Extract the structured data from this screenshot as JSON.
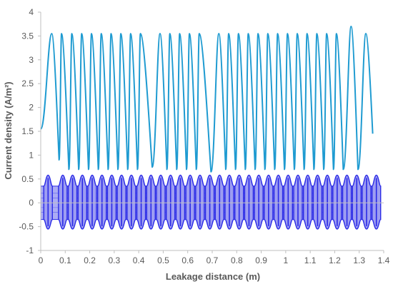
{
  "chart_data": {
    "type": "line",
    "title": "",
    "xlabel": "Leakage distance (m)",
    "ylabel": "Current density (A/m²)",
    "xlim": [
      0,
      1.4
    ],
    "ylim": [
      -1,
      4
    ],
    "x_ticks": [
      "0",
      "0.1",
      "0.2",
      "0.3",
      "0.4",
      "0.5",
      "0.6",
      "0.7",
      "0.8",
      "0.9",
      "1",
      "1.1",
      "1.2",
      "1.3",
      "1.4"
    ],
    "y_ticks": [
      "-1",
      "-0.5",
      "0",
      "0.5",
      "1",
      "1.5",
      "2",
      "2.5",
      "3",
      "3.5",
      "4"
    ],
    "grid": false,
    "legend": "none",
    "colors": {
      "upper_series": "#1f9bd1",
      "lower_series": "#2a2ae6",
      "lower_fill": "#9d9df2",
      "axis": "#bfbfbf",
      "text": "#595959"
    },
    "series": [
      {
        "style": "line",
        "peak_x": [
          0.045,
          0.085,
          0.127,
          0.167,
          0.207,
          0.247,
          0.287,
          0.327,
          0.367,
          0.407,
          0.487,
          0.527,
          0.567,
          0.607,
          0.647,
          0.727,
          0.767,
          0.807,
          0.847,
          0.887,
          0.927,
          0.967,
          1.007,
          1.047,
          1.087,
          1.127,
          1.167,
          1.207,
          1.267,
          1.327
        ],
        "peak_y": [
          3.55,
          3.55,
          3.55,
          3.55,
          3.55,
          3.55,
          3.55,
          3.55,
          3.55,
          3.55,
          3.55,
          3.55,
          3.55,
          3.55,
          3.55,
          3.55,
          3.55,
          3.55,
          3.55,
          3.55,
          3.55,
          3.55,
          3.55,
          3.55,
          3.55,
          3.55,
          3.55,
          3.55,
          3.7,
          3.55
        ],
        "trough_x": [
          0.0,
          0.075,
          0.115,
          0.155,
          0.195,
          0.235,
          0.275,
          0.315,
          0.355,
          0.395,
          0.455,
          0.515,
          0.555,
          0.595,
          0.635,
          0.695,
          0.755,
          0.795,
          0.835,
          0.875,
          0.915,
          0.955,
          0.995,
          1.035,
          1.075,
          1.115,
          1.155,
          1.195,
          1.235,
          1.295,
          1.355
        ],
        "trough_y": [
          1.55,
          0.9,
          0.7,
          0.7,
          0.7,
          0.7,
          0.7,
          0.7,
          0.7,
          0.7,
          0.75,
          0.7,
          0.7,
          0.7,
          0.7,
          0.65,
          0.7,
          0.7,
          0.7,
          0.7,
          0.7,
          0.7,
          0.7,
          0.7,
          0.7,
          0.7,
          0.7,
          0.7,
          0.7,
          0.7,
          1.45
        ],
        "end_x": 1.37,
        "end_y": 1.45
      },
      {
        "style": "filled band",
        "x_range": [
          0.0,
          1.37
        ],
        "band_y": [
          -0.35,
          0.35
        ],
        "spike_x": [
          0.03,
          0.09,
          0.13,
          0.17,
          0.21,
          0.25,
          0.29,
          0.33,
          0.37,
          0.41,
          0.45,
          0.49,
          0.53,
          0.57,
          0.61,
          0.65,
          0.69,
          0.73,
          0.77,
          0.81,
          0.85,
          0.89,
          0.93,
          0.97,
          1.01,
          1.05,
          1.09,
          1.13,
          1.17,
          1.21,
          1.25,
          1.29,
          1.33,
          1.37
        ],
        "spike_max": 0.58,
        "spike_min": -0.55
      }
    ]
  }
}
